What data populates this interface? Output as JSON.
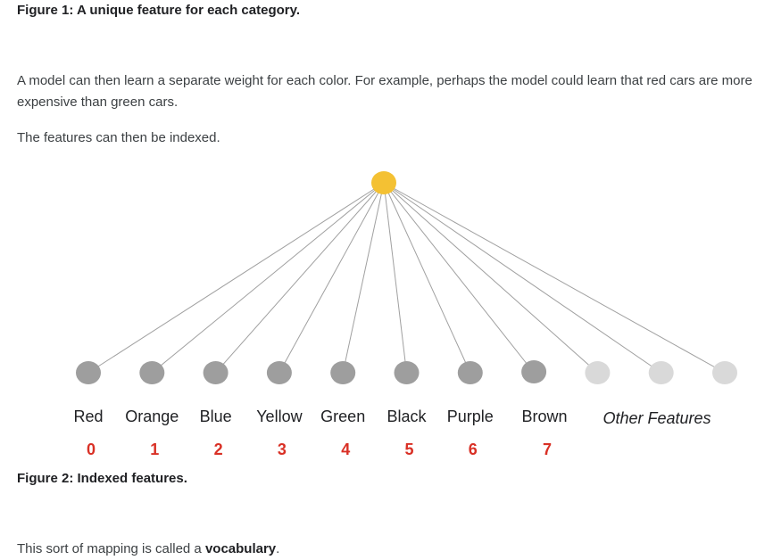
{
  "figure1_caption": "Figure 1: A unique feature for each category.",
  "paragraph1": "A model can then learn a separate weight for each color. For example, perhaps the model could learn that red cars are more expensive than green cars.",
  "paragraph2": "The features can then be indexed.",
  "diagram": {
    "top_node_color": "#f4c133",
    "feature_node_color": "#9e9e9e",
    "other_node_color": "#d9d9d9",
    "index_color": "#d93025",
    "features": [
      {
        "label": "Red",
        "index": "0"
      },
      {
        "label": "Orange",
        "index": "1"
      },
      {
        "label": "Blue",
        "index": "2"
      },
      {
        "label": "Yellow",
        "index": "3"
      },
      {
        "label": "Green",
        "index": "4"
      },
      {
        "label": "Black",
        "index": "5"
      },
      {
        "label": "Purple",
        "index": "6"
      },
      {
        "label": "Brown",
        "index": "7"
      }
    ],
    "other_features_label": "Other Features",
    "other_feature_count": 3
  },
  "figure2_caption": "Figure 2: Indexed features.",
  "closing": {
    "prefix": "This sort of mapping is called a ",
    "term": "vocabulary",
    "suffix": "."
  }
}
